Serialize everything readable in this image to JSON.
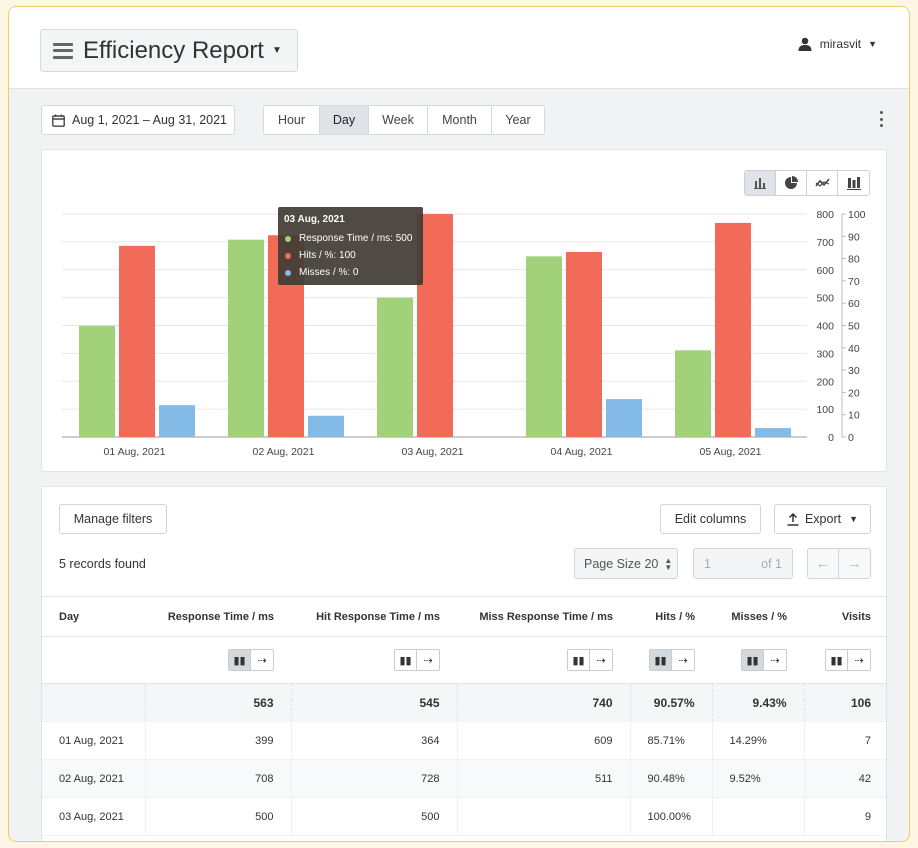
{
  "header": {
    "title": "Efficiency Report",
    "user": "mirasvit"
  },
  "toolbar": {
    "date_range": "Aug 1, 2021 – Aug 31, 2021",
    "periods": [
      "Hour",
      "Day",
      "Week",
      "Month",
      "Year"
    ],
    "active_period": "Day"
  },
  "chart_types": [
    "column-chart-icon",
    "pie-chart-icon",
    "line-chart-icon",
    "stacked-chart-icon"
  ],
  "tooltip": {
    "title": "03 Aug, 2021",
    "rows": [
      {
        "label": "Response Time / ms: 500",
        "color": "#a1d179"
      },
      {
        "label": "Hits / %: 100",
        "color": "#f26b59"
      },
      {
        "label": "Misses / %: 0",
        "color": "#83bbe6"
      }
    ]
  },
  "chart_data": {
    "type": "bar",
    "categories": [
      "01 Aug, 2021",
      "02 Aug, 2021",
      "03 Aug, 2021",
      "04 Aug, 2021",
      "05 Aug, 2021"
    ],
    "series": [
      {
        "name": "Response Time / ms",
        "axis": "left",
        "color": "#a1d179",
        "values": [
          399,
          708,
          500,
          648,
          311
        ]
      },
      {
        "name": "Hits / %",
        "axis": "right",
        "color": "#f26b59",
        "values": [
          85.71,
          90.48,
          100,
          83,
          96
        ]
      },
      {
        "name": "Misses / %",
        "axis": "right",
        "color": "#83bbe6",
        "values": [
          14.29,
          9.52,
          0,
          17,
          4
        ]
      }
    ],
    "y_left": {
      "min": 0,
      "max": 800,
      "ticks": [
        "0",
        "100",
        "200",
        "300",
        "400",
        "500",
        "600",
        "700",
        "800"
      ]
    },
    "y_right": {
      "min": 0,
      "max": 100,
      "ticks": [
        "0",
        "10",
        "20",
        "30",
        "40",
        "50",
        "60",
        "70",
        "80",
        "90",
        "100"
      ]
    },
    "grid": true,
    "legend": "none"
  },
  "table": {
    "manage_filters": "Manage filters",
    "edit_columns": "Edit columns",
    "export": "Export",
    "records": "5 records found",
    "page_size_label": "Page Size 20",
    "page_current": "1",
    "page_of": "of 1",
    "columns": [
      "Day",
      "Response Time / ms",
      "Hit Response Time / ms",
      "Miss Response Time / ms",
      "Hits / %",
      "Misses / %",
      "Visits"
    ],
    "totals": [
      "",
      "563",
      "545",
      "740",
      "90.57%",
      "9.43%",
      "106"
    ],
    "rows": [
      [
        "01 Aug, 2021",
        "399",
        "364",
        "609",
        "85.71%",
        "14.29%",
        "7"
      ],
      [
        "02 Aug, 2021",
        "708",
        "728",
        "511",
        "90.48%",
        "9.52%",
        "42"
      ],
      [
        "03 Aug, 2021",
        "500",
        "500",
        "",
        "100.00%",
        "",
        "9"
      ]
    ]
  }
}
